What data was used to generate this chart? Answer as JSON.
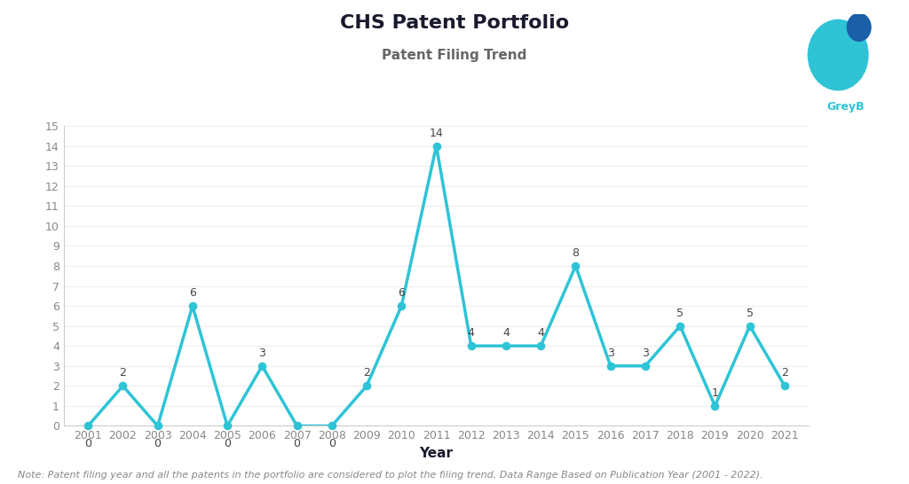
{
  "title": "CHS Patent Portfolio",
  "subtitle": "Patent Filing Trend",
  "xlabel": "Year",
  "years": [
    2001,
    2002,
    2003,
    2004,
    2005,
    2006,
    2007,
    2008,
    2009,
    2010,
    2011,
    2012,
    2013,
    2014,
    2015,
    2016,
    2017,
    2018,
    2019,
    2020,
    2021
  ],
  "values": [
    0,
    2,
    0,
    6,
    0,
    3,
    0,
    0,
    2,
    6,
    14,
    4,
    4,
    4,
    8,
    3,
    3,
    5,
    1,
    5,
    2
  ],
  "line_color": "#2ec4d6",
  "background_color": "#ffffff",
  "title_fontsize": 16,
  "subtitle_fontsize": 11,
  "annotation_fontsize": 9,
  "tick_fontsize": 9,
  "xlabel_fontsize": 11,
  "note_text": "Note: Patent filing year and all the patents in the portfolio are considered to plot the filing trend, Data Range Based on Publication Year (2001 - 2022).",
  "note_fontsize": 8,
  "ylim": [
    0,
    15
  ],
  "yticks": [
    0,
    1,
    2,
    3,
    4,
    5,
    6,
    7,
    8,
    9,
    10,
    11,
    12,
    13,
    14,
    15
  ],
  "logo_main_color": "#2ec4d6",
  "logo_dark_color": "#1a5fa8",
  "greyb_text_color": "#2ec4d6",
  "subtitle_color": "#666666",
  "title_color": "#1a1a2e",
  "annotation_color": "#444444",
  "axis_text_color": "#888888",
  "note_color": "#888888",
  "spine_color": "#cccccc",
  "grid_color": "#eeeeee"
}
